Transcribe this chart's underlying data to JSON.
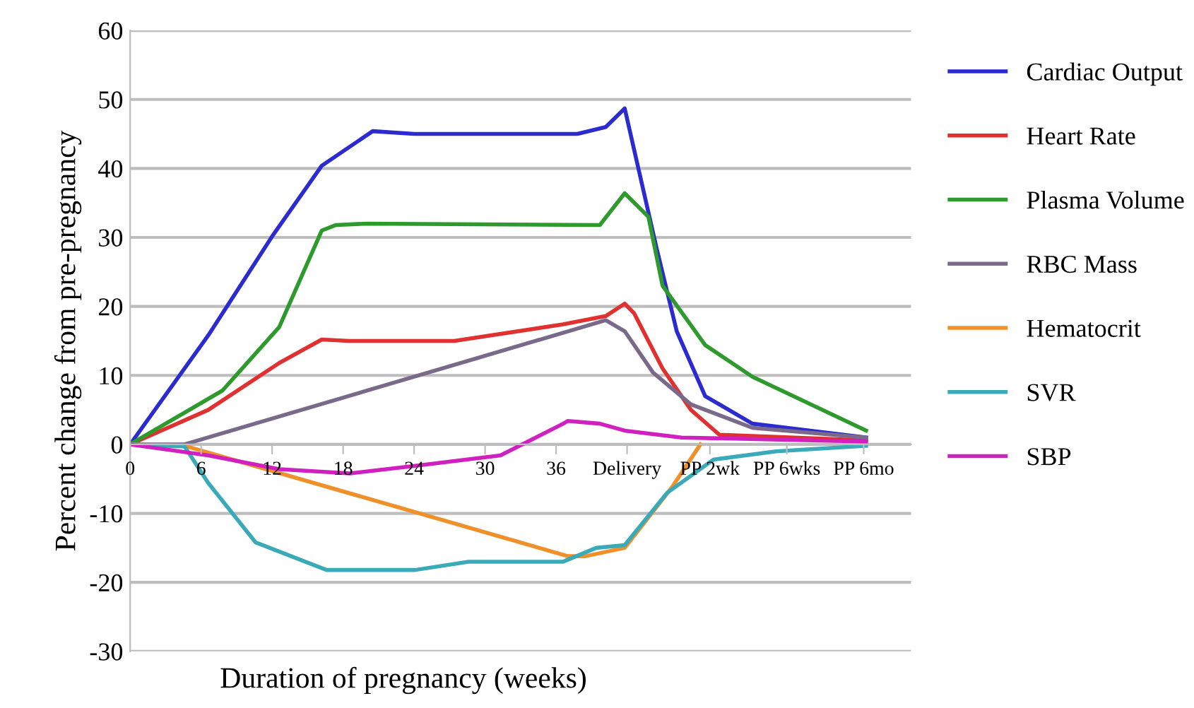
{
  "chart_data": {
    "type": "line",
    "xlabel": "Duration of pregnancy (weeks)",
    "ylabel": "Percent change from pre-pregnancy",
    "xlim": [
      0,
      66
    ],
    "ylim": [
      -30,
      60
    ],
    "yticks": [
      -30,
      -20,
      -10,
      0,
      10,
      20,
      30,
      40,
      50,
      60
    ],
    "xticks": [
      0,
      6,
      12,
      18,
      24,
      30,
      36,
      {
        "value": 42,
        "label": "Delivery"
      },
      {
        "value": 49,
        "label": "PP 2wk"
      },
      {
        "value": 55.5,
        "label": "PP 6wks"
      },
      {
        "value": 62,
        "label": "PP 6mo"
      }
    ],
    "grid": "y",
    "legend": "right",
    "marker": "none",
    "line_style": "solid",
    "series": [
      {
        "name": "Cardiac Output",
        "color": "#2b2bd0",
        "x": [
          0,
          6.6,
          12.1,
          16.2,
          20.5,
          24,
          37.8,
          40.2,
          41.8,
          44.5,
          46.2,
          48.6,
          52.6,
          62.2
        ],
        "values": [
          0,
          15.8,
          30.4,
          40.4,
          45.4,
          45,
          45,
          46,
          48.7,
          28.4,
          16.4,
          7,
          3,
          1
        ]
      },
      {
        "name": "Heart Rate",
        "color": "#e03030",
        "x": [
          0,
          6.6,
          12.6,
          16.2,
          18.5,
          27.4,
          36.6,
          40.2,
          41.8,
          42.6,
          45,
          47.4,
          49.8,
          62.2
        ],
        "values": [
          0,
          5,
          11.8,
          15.2,
          15,
          15,
          17.4,
          18.6,
          20.4,
          19,
          11,
          5,
          1.4,
          0.6
        ]
      },
      {
        "name": "Plasma Volume",
        "color": "#2e9a2e",
        "x": [
          0,
          7.8,
          12.6,
          16.2,
          17.4,
          20,
          39.7,
          41.8,
          43.8,
          45,
          48.6,
          52.6,
          62.2
        ],
        "values": [
          0,
          7.8,
          17,
          31,
          31.8,
          32,
          31.8,
          36.4,
          33,
          23,
          14.4,
          9.8,
          2
        ]
      },
      {
        "name": "RBC Mass",
        "color": "#7a6a8a",
        "x": [
          0,
          4.6,
          40.2,
          41.8,
          44.2,
          47.4,
          52.6,
          62.2
        ],
        "values": [
          0,
          0,
          18,
          16.4,
          10.4,
          5.8,
          2.4,
          1
        ]
      },
      {
        "name": "Hematocrit",
        "color": "#f0902a",
        "x": [
          0,
          4.6,
          37,
          38.5,
          41.8,
          45.8,
          48.2
        ],
        "values": [
          0,
          -0.2,
          -16.2,
          -16.2,
          -15,
          -6.2,
          0
        ]
      },
      {
        "name": "SVR",
        "color": "#3aaab8",
        "x": [
          0,
          4.6,
          6.6,
          10.6,
          16.6,
          24.1,
          28.6,
          36.6,
          39.4,
          41.8,
          45.4,
          49.3,
          54.6,
          62.2
        ],
        "values": [
          0,
          -0.3,
          -5.6,
          -14.2,
          -18.2,
          -18.2,
          -17,
          -17,
          -15,
          -14.6,
          -7,
          -2.2,
          -1,
          -0.2
        ]
      },
      {
        "name": "SBP",
        "color": "#d020c0",
        "x": [
          0,
          6.6,
          12.6,
          18.6,
          24.6,
          31.3,
          36.6,
          37,
          39.7,
          41.8,
          46.6,
          62.2
        ],
        "values": [
          0,
          -1.6,
          -3.6,
          -4.2,
          -3,
          -1.6,
          3,
          3.4,
          3,
          2,
          1,
          0.4
        ]
      }
    ]
  }
}
